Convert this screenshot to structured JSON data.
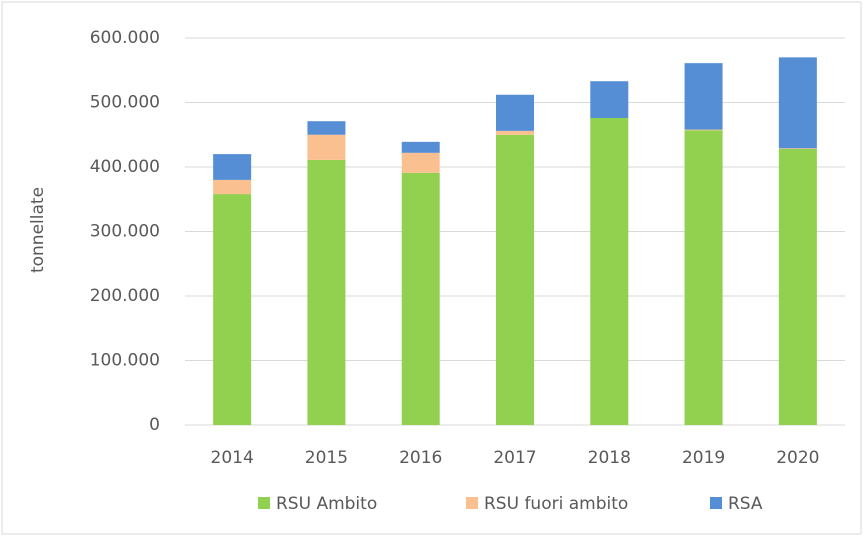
{
  "chart_data": {
    "type": "stacked_bar",
    "y_axis_label": "tonnellate",
    "categories": [
      "2014",
      "2015",
      "2016",
      "2017",
      "2018",
      "2019",
      "2020"
    ],
    "series": [
      {
        "name": "RSU Ambito",
        "color": "#92d050",
        "values": [
          358000,
          411000,
          391000,
          450000,
          476000,
          457000,
          428000
        ]
      },
      {
        "name": "RSU fuori ambito",
        "color": "#fac090",
        "values": [
          22000,
          39000,
          31000,
          6000,
          0,
          1000,
          1000
        ]
      },
      {
        "name": "RSA",
        "color": "#558ed5",
        "values": [
          40000,
          21000,
          17000,
          56000,
          57000,
          103000,
          141000
        ]
      }
    ],
    "ylim": [
      0,
      600000
    ],
    "yticks": [
      0,
      {
        "value": 100000,
        "label": "100.000"
      },
      {
        "value": 200000,
        "label": "200.000"
      },
      {
        "value": 300000,
        "label": "300.000"
      },
      {
        "value": 400000,
        "label": "400.000"
      },
      {
        "value": 500000,
        "label": "500.000"
      },
      {
        "value": 600000,
        "label": "600.000"
      }
    ],
    "grid": true,
    "legend": "bottom"
  }
}
